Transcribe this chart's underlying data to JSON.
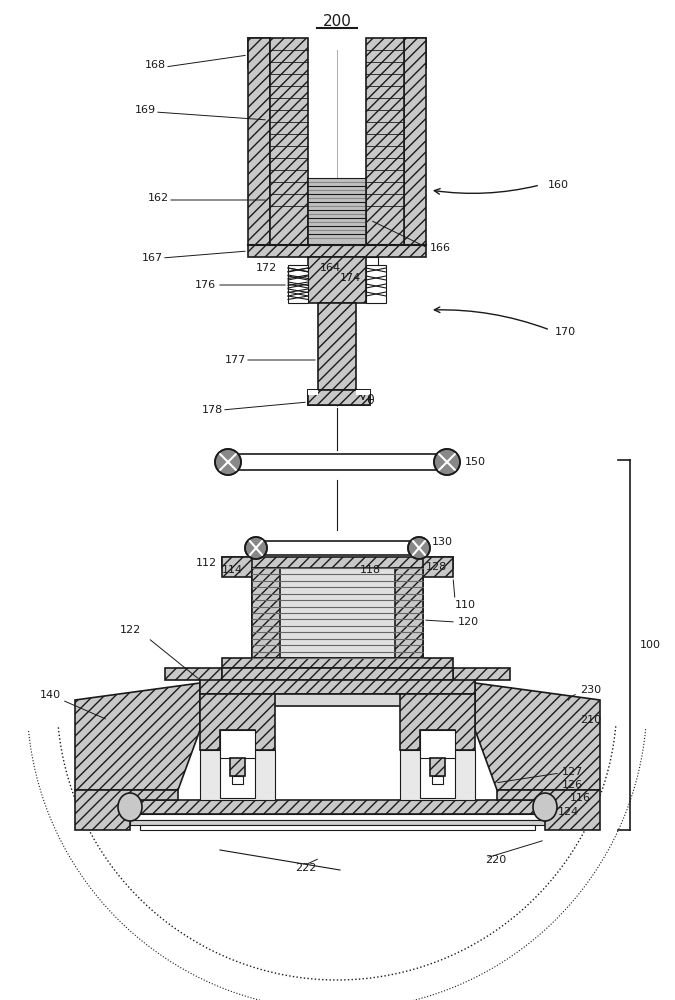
{
  "bg_color": "#ffffff",
  "lc": "#1a1a1a",
  "hatch_fc": "#c8c8c8",
  "white": "#ffffff",
  "fig_w": 6.75,
  "fig_h": 10.0,
  "dpi": 100
}
